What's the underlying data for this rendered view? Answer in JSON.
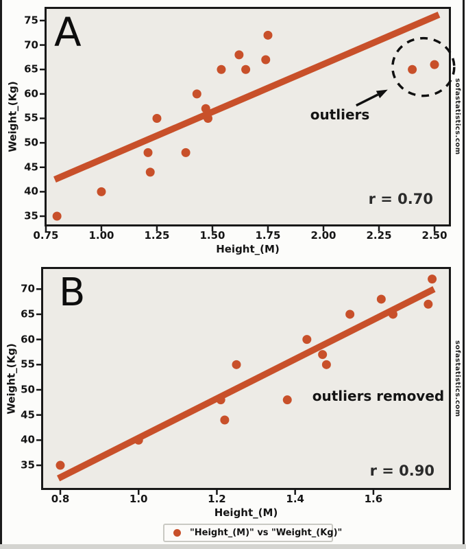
{
  "page": {
    "watermark": "sofastatistics.com"
  },
  "colors": {
    "accent": "#c8502a",
    "ink": "#181818",
    "plot_bg": "#edebe6",
    "page_bg": "#fcfcfa",
    "bottom_band": "#d4d4d0",
    "r_text": "#2b2b2b"
  },
  "legend": {
    "label": "\"Height_(M)\" vs \"Weight_(Kg)\""
  },
  "chart_data": [
    {
      "type": "scatter",
      "panel_letter": "A",
      "xlabel": "Height_(M)",
      "ylabel": "Weight_(Kg)",
      "r": 0.7,
      "r_label": "r = 0.70",
      "annotation": "outliers",
      "xlim": [
        0.744,
        2.574
      ],
      "ylim": [
        32.9,
        77.8
      ],
      "x_tick_labels": [
        "0.75",
        "1.00",
        "1.25",
        "1.50",
        "1.75",
        "2.00",
        "2.25",
        "2.50"
      ],
      "x_tick_values": [
        0.75,
        1.0,
        1.25,
        1.5,
        1.75,
        2.0,
        2.25,
        2.5
      ],
      "y_tick_labels": [
        "35",
        "40",
        "45",
        "50",
        "55",
        "60",
        "65",
        "70",
        "75"
      ],
      "y_tick_values": [
        35,
        40,
        45,
        50,
        55,
        60,
        65,
        70,
        75
      ],
      "points": [
        [
          0.8,
          35
        ],
        [
          1.0,
          40
        ],
        [
          1.21,
          48
        ],
        [
          1.22,
          44
        ],
        [
          1.25,
          55
        ],
        [
          1.38,
          48
        ],
        [
          1.43,
          60
        ],
        [
          1.47,
          57
        ],
        [
          1.48,
          55
        ],
        [
          1.54,
          65
        ],
        [
          1.62,
          68
        ],
        [
          1.65,
          65
        ],
        [
          1.74,
          67
        ],
        [
          1.75,
          72
        ]
      ],
      "outliers": [
        [
          2.4,
          65
        ],
        [
          2.5,
          66
        ]
      ],
      "trendline": {
        "x1": 0.79,
        "y1": 42.5,
        "x2": 2.52,
        "y2": 76.2
      }
    },
    {
      "type": "scatter",
      "panel_letter": "B",
      "xlabel": "Height_(M)",
      "ylabel": "Weight_(Kg)",
      "r": 0.9,
      "r_label": "r = 0.90",
      "annotation": "outliers removed",
      "xlim": [
        0.751,
        1.798
      ],
      "ylim": [
        30.1,
        74.4
      ],
      "x_tick_labels": [
        "0.8",
        "1.0",
        "1.2",
        "1.4",
        "1.6"
      ],
      "x_tick_values": [
        0.8,
        1.0,
        1.2,
        1.4,
        1.6
      ],
      "y_tick_labels": [
        "35",
        "40",
        "45",
        "50",
        "55",
        "60",
        "65",
        "70"
      ],
      "y_tick_values": [
        35,
        40,
        45,
        50,
        55,
        60,
        65,
        70
      ],
      "points": [
        [
          0.8,
          35
        ],
        [
          1.0,
          40
        ],
        [
          1.21,
          48
        ],
        [
          1.22,
          44
        ],
        [
          1.25,
          55
        ],
        [
          1.38,
          48
        ],
        [
          1.43,
          60
        ],
        [
          1.47,
          57
        ],
        [
          1.48,
          55
        ],
        [
          1.54,
          65
        ],
        [
          1.62,
          68
        ],
        [
          1.65,
          65
        ],
        [
          1.74,
          67
        ],
        [
          1.75,
          72
        ]
      ],
      "trendline": {
        "x1": 0.795,
        "y1": 32.4,
        "x2": 1.755,
        "y2": 70.0
      }
    }
  ]
}
